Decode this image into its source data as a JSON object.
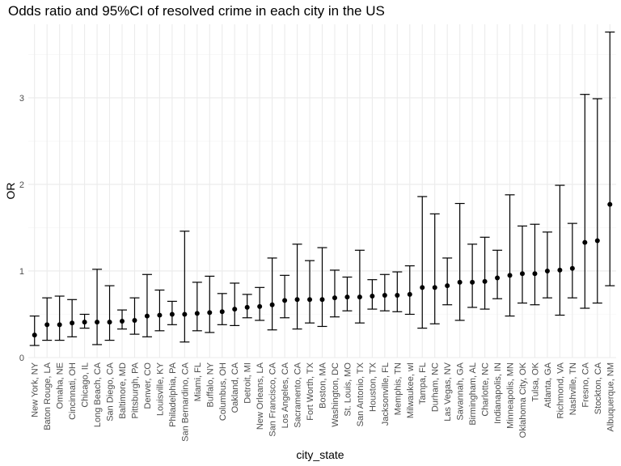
{
  "chart_data": {
    "type": "errorbar",
    "title": "Odds ratio and 95%CI of resolved crime in each city in the US",
    "xlabel": "city_state",
    "ylabel": "OR",
    "ylim": [
      0,
      3.85
    ],
    "yticks": [
      0,
      1,
      2,
      3
    ],
    "grid": "on",
    "legend": "none",
    "categories": [
      "New York, NY",
      "Baton Rouge, LA",
      "Omaha, NE",
      "Cincinnati, OH",
      "Chicago, IL",
      "Long Beach, CA",
      "San Diego, CA",
      "Baltimore, MD",
      "Pittsburgh, PA",
      "Denver, CO",
      "Louisville, KY",
      "Philadelphia, PA",
      "San Bernardino, CA",
      "Miami, FL",
      "Buffalo, NY",
      "Columbus, OH",
      "Oakland, CA",
      "Detroit, MI",
      "New Orleans, LA",
      "San Francisco, CA",
      "Los Angeles, CA",
      "Sacramento, CA",
      "Fort Worth, TX",
      "Boston, MA",
      "Washington, DC",
      "St. Louis, MO",
      "San Antonio, TX",
      "Houston, TX",
      "Jacksonville, FL",
      "Memphis, TN",
      "Milwaukee, wI",
      "Tampa, FL",
      "Durham, NC",
      "Las Vegas, NV",
      "Savannah, GA",
      "Birmingham, AL",
      "Charlotte, NC",
      "Indianapolis, IN",
      "Minneapolis, MN",
      "Oklahoma City, OK",
      "Tulsa, OK",
      "Atlanta, GA",
      "Richmond, VA",
      "Nashville, TN",
      "Fresno, CA",
      "Stockton, CA",
      "Albuquerque, NM"
    ],
    "or": [
      0.26,
      0.38,
      0.38,
      0.4,
      0.41,
      0.41,
      0.41,
      0.42,
      0.43,
      0.48,
      0.49,
      0.5,
      0.5,
      0.51,
      0.52,
      0.53,
      0.56,
      0.58,
      0.59,
      0.61,
      0.66,
      0.67,
      0.67,
      0.67,
      0.69,
      0.7,
      0.7,
      0.71,
      0.72,
      0.72,
      0.73,
      0.81,
      0.81,
      0.83,
      0.87,
      0.87,
      0.88,
      0.92,
      0.95,
      0.97,
      0.97,
      1.0,
      1.01,
      1.03,
      1.33,
      1.35,
      1.77
    ],
    "lower": [
      0.14,
      0.2,
      0.2,
      0.24,
      0.34,
      0.15,
      0.2,
      0.33,
      0.27,
      0.24,
      0.31,
      0.38,
      0.18,
      0.31,
      0.29,
      0.38,
      0.37,
      0.46,
      0.43,
      0.32,
      0.46,
      0.33,
      0.4,
      0.36,
      0.47,
      0.54,
      0.4,
      0.56,
      0.54,
      0.53,
      0.5,
      0.34,
      0.39,
      0.61,
      0.43,
      0.58,
      0.56,
      0.68,
      0.48,
      0.63,
      0.61,
      0.69,
      0.49,
      0.69,
      0.57,
      0.63,
      0.83
    ],
    "upper": [
      0.48,
      0.69,
      0.71,
      0.67,
      0.5,
      1.02,
      0.83,
      0.55,
      0.69,
      0.96,
      0.78,
      0.65,
      1.46,
      0.87,
      0.94,
      0.74,
      0.86,
      0.73,
      0.81,
      1.15,
      0.95,
      1.31,
      1.12,
      1.27,
      1.01,
      0.93,
      1.24,
      0.9,
      0.96,
      0.99,
      1.06,
      1.86,
      1.66,
      1.15,
      1.78,
      1.31,
      1.39,
      1.24,
      1.88,
      1.52,
      1.54,
      1.45,
      1.99,
      1.55,
      3.04,
      2.99,
      3.76
    ]
  }
}
